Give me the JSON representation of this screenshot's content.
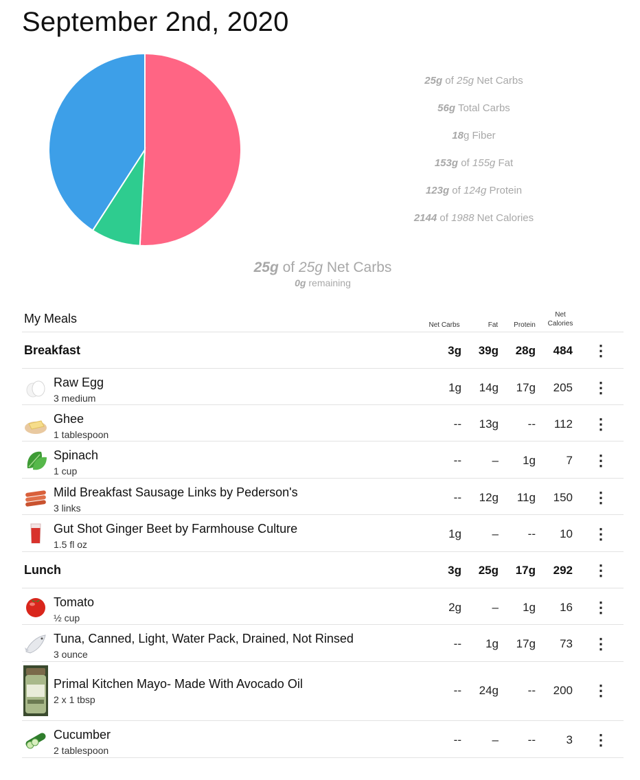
{
  "date_title": "September 2nd, 2020",
  "chart_data": {
    "type": "pie",
    "slices": [
      {
        "label": "Fat",
        "value": 153,
        "color": "#ff6584"
      },
      {
        "label": "Net Carbs",
        "value": 25,
        "color": "#2ecc8f"
      },
      {
        "label": "Protein",
        "value": 123,
        "color": "#3d9fe8"
      }
    ]
  },
  "summary": {
    "net_carbs": {
      "value": "25g",
      "of": "of",
      "goal": "25g",
      "label": "Net Carbs"
    },
    "total_carbs": {
      "value": "56g",
      "label": "Total Carbs"
    },
    "fiber": {
      "value": "18",
      "unit": "g",
      "label": "Fiber"
    },
    "fat": {
      "value": "153g",
      "of": "of",
      "goal": "155g",
      "label": "Fat"
    },
    "protein": {
      "value": "123g",
      "of": "of",
      "goal": "124g",
      "label": "Protein"
    },
    "calories": {
      "value": "2144",
      "of": "of",
      "goal": "1988",
      "label": "Net Calories"
    }
  },
  "headline": {
    "value": "25g",
    "of": "of",
    "goal": "25g",
    "label": "Net Carbs",
    "remaining_value": "0g",
    "remaining_label": "remaining"
  },
  "meals": {
    "title": "My Meals",
    "col_net_carbs": "Net Carbs",
    "col_fat": "Fat",
    "col_protein": "Protein",
    "col_net_calories_1": "Net",
    "col_net_calories_2": "Calories",
    "kebab": "⋮",
    "breakfast": {
      "name": "Breakfast",
      "totals": {
        "net_carbs": "3g",
        "fat": "39g",
        "protein": "28g",
        "calories": "484"
      },
      "items": [
        {
          "name": "Raw Egg",
          "amount": "3 medium",
          "net_carbs": "1g",
          "fat": "14g",
          "protein": "17g",
          "calories": "205",
          "icon": "egg-icon"
        },
        {
          "name": "Ghee",
          "amount": "1 tablespoon",
          "net_carbs": "--",
          "fat": "13g",
          "protein": "--",
          "calories": "112",
          "icon": "ghee-icon"
        },
        {
          "name": "Spinach",
          "amount": "1 cup",
          "net_carbs": "--",
          "fat": "–",
          "protein": "1g",
          "calories": "7",
          "icon": "spinach-icon"
        },
        {
          "name": "Mild Breakfast Sausage Links by Pederson's",
          "amount": "3 links",
          "net_carbs": "--",
          "fat": "12g",
          "protein": "11g",
          "calories": "150",
          "icon": "sausage-icon"
        },
        {
          "name": "Gut Shot Ginger Beet by Farmhouse Culture",
          "amount": "1.5 fl oz",
          "net_carbs": "1g",
          "fat": "–",
          "protein": "--",
          "calories": "10",
          "icon": "juice-glass-icon"
        }
      ]
    },
    "lunch": {
      "name": "Lunch",
      "totals": {
        "net_carbs": "3g",
        "fat": "25g",
        "protein": "17g",
        "calories": "292"
      },
      "items": [
        {
          "name": "Tomato",
          "amount": "½ cup",
          "net_carbs": "2g",
          "fat": "–",
          "protein": "1g",
          "calories": "16",
          "icon": "tomato-icon"
        },
        {
          "name": "Tuna, Canned, Light, Water Pack, Drained, Not Rinsed",
          "amount": "3 ounce",
          "net_carbs": "--",
          "fat": "1g",
          "protein": "17g",
          "calories": "73",
          "icon": "fish-icon"
        },
        {
          "name": "Primal Kitchen Mayo- Made With Avocado Oil",
          "amount": "2 x 1 tbsp",
          "net_carbs": "--",
          "fat": "24g",
          "protein": "--",
          "calories": "200",
          "icon": "mayo-jar-photo"
        },
        {
          "name": "Cucumber",
          "amount": "2 tablespoon",
          "net_carbs": "--",
          "fat": "–",
          "protein": "--",
          "calories": "3",
          "icon": "cucumber-icon"
        }
      ]
    }
  }
}
